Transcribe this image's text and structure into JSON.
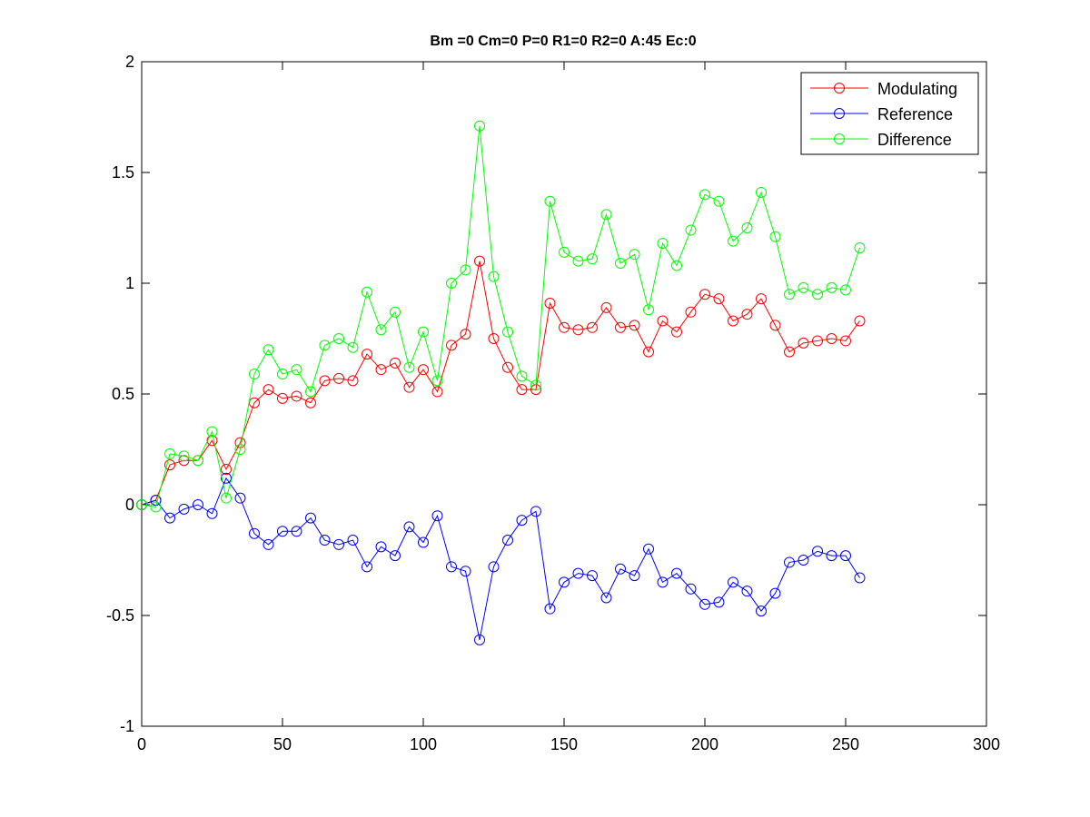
{
  "chart_data": {
    "type": "line",
    "title": "Bm =0  Cm=0  P=0  R1=0  R2=0  A:45  Ec:0",
    "xlabel": "",
    "ylabel": "",
    "xlim": [
      0,
      300
    ],
    "ylim": [
      -1,
      2
    ],
    "xticks": [
      0,
      50,
      100,
      150,
      200,
      250,
      300
    ],
    "xtick_labels": [
      "0",
      "50",
      "100",
      "150",
      "200",
      "250",
      "300"
    ],
    "yticks": [
      -1,
      -0.5,
      0,
      0.5,
      1,
      1.5,
      2
    ],
    "ytick_labels": [
      "-1",
      "-0.5",
      "0",
      "0.5",
      "1",
      "1.5",
      "2"
    ],
    "grid": false,
    "legend_position": "top-right",
    "marker": "circle",
    "x": [
      0,
      5,
      10,
      15,
      20,
      25,
      30,
      35,
      40,
      45,
      50,
      55,
      60,
      65,
      70,
      75,
      80,
      85,
      90,
      95,
      100,
      105,
      110,
      115,
      120,
      125,
      130,
      135,
      140,
      145,
      150,
      155,
      160,
      165,
      170,
      175,
      180,
      185,
      190,
      195,
      200,
      205,
      210,
      215,
      220,
      225,
      230,
      235,
      240,
      245,
      250,
      255
    ],
    "series": [
      {
        "name": "Modulating",
        "color": "#ff0000",
        "values": [
          0,
          0.02,
          0.18,
          0.2,
          0.2,
          0.29,
          0.16,
          0.28,
          0.46,
          0.52,
          0.48,
          0.49,
          0.46,
          0.56,
          0.57,
          0.56,
          0.68,
          0.61,
          0.64,
          0.53,
          0.61,
          0.51,
          0.72,
          0.77,
          1.1,
          0.75,
          0.62,
          0.52,
          0.52,
          0.91,
          0.8,
          0.79,
          0.8,
          0.89,
          0.8,
          0.81,
          0.69,
          0.83,
          0.78,
          0.87,
          0.95,
          0.93,
          0.83,
          0.86,
          0.93,
          0.81,
          0.69,
          0.73,
          0.74,
          0.75,
          0.74,
          0.83
        ]
      },
      {
        "name": "Reference",
        "color": "#0000ff",
        "values": [
          0,
          0.02,
          -0.06,
          -0.02,
          0,
          -0.04,
          0.12,
          0.03,
          -0.13,
          -0.18,
          -0.12,
          -0.12,
          -0.06,
          -0.16,
          -0.18,
          -0.16,
          -0.28,
          -0.19,
          -0.23,
          -0.1,
          -0.17,
          -0.05,
          -0.28,
          -0.3,
          -0.61,
          -0.28,
          -0.16,
          -0.07,
          -0.03,
          -0.47,
          -0.35,
          -0.31,
          -0.32,
          -0.42,
          -0.29,
          -0.32,
          -0.2,
          -0.35,
          -0.31,
          -0.38,
          -0.45,
          -0.44,
          -0.35,
          -0.39,
          -0.48,
          -0.4,
          -0.26,
          -0.25,
          -0.21,
          -0.23,
          -0.23,
          -0.33
        ]
      },
      {
        "name": "Difference",
        "color": "#00ff00",
        "values": [
          0,
          -0.01,
          0.23,
          0.22,
          0.2,
          0.33,
          0.03,
          0.25,
          0.59,
          0.7,
          0.59,
          0.61,
          0.51,
          0.72,
          0.75,
          0.71,
          0.96,
          0.79,
          0.87,
          0.62,
          0.78,
          0.56,
          1.0,
          1.06,
          1.71,
          1.03,
          0.78,
          0.58,
          0.54,
          1.37,
          1.14,
          1.1,
          1.11,
          1.31,
          1.09,
          1.13,
          0.88,
          1.18,
          1.08,
          1.24,
          1.4,
          1.37,
          1.19,
          1.25,
          1.41,
          1.21,
          0.95,
          0.98,
          0.95,
          0.98,
          0.97,
          1.16
        ]
      }
    ]
  }
}
